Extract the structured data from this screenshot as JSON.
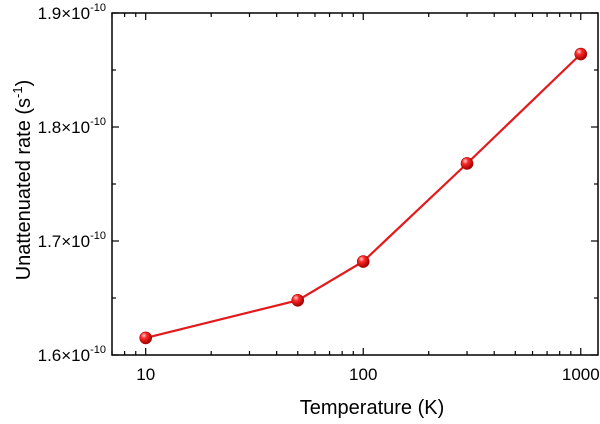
{
  "chart_data": {
    "type": "line",
    "xlabel": "Temperature (K)",
    "ylabel": "Unattenuated rate (s⁻¹)",
    "ylabel_parts": {
      "text": "Unattenuated rate (s",
      "sup": "-1",
      "close": ")"
    },
    "x_scale": "log",
    "xlim": [
      7,
      1200
    ],
    "ylim": [
      1.6e-10,
      1.9e-10
    ],
    "x_ticks": [
      10,
      100,
      1000
    ],
    "x_tick_labels": [
      "10",
      "100",
      "1000"
    ],
    "y_ticks": [
      1.6e-10,
      1.7e-10,
      1.8e-10,
      1.9e-10
    ],
    "y_tick_labels": [
      {
        "mantissa": "1.6×10",
        "exp": "-10"
      },
      {
        "mantissa": "1.7×10",
        "exp": "-10"
      },
      {
        "mantissa": "1.8×10",
        "exp": "-10"
      },
      {
        "mantissa": "1.9×10",
        "exp": "-10"
      }
    ],
    "grid": false,
    "series": [
      {
        "color": "#e31a1c",
        "x": [
          10,
          50,
          100,
          300,
          1000
        ],
        "y": [
          1.615e-10,
          1.648e-10,
          1.682e-10,
          1.768e-10,
          1.864e-10
        ]
      }
    ]
  }
}
